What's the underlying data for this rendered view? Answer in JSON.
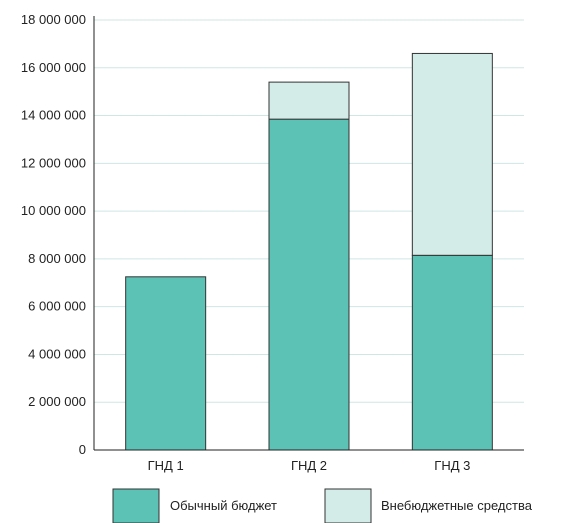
{
  "chart_data": {
    "type": "bar",
    "stacked": true,
    "categories": [
      "ГНД 1",
      "ГНД 2",
      "ГНД 3"
    ],
    "series": [
      {
        "name": "Обычный бюджет",
        "values": [
          7250000,
          13850000,
          8150000
        ],
        "color": "#5cc2b6"
      },
      {
        "name": "Внебюджетные средства",
        "values": [
          0,
          1550000,
          8450000
        ],
        "color": "#d4ece8"
      }
    ],
    "yticks": [
      0,
      2000000,
      4000000,
      6000000,
      8000000,
      10000000,
      12000000,
      14000000,
      16000000,
      18000000
    ],
    "ytick_labels": [
      "0",
      "2 000 000",
      "4 000 000",
      "6 000 000",
      "8 000 000",
      "10 000 000",
      "12 000 000",
      "14 000 000",
      "16 000 000",
      "18 000 000"
    ],
    "ylim": [
      0,
      18000000
    ],
    "grid": true,
    "legend_position": "bottom",
    "title": "",
    "xlabel": "",
    "ylabel": ""
  },
  "colors": {
    "grid": "#cfe6e3",
    "axis": "#222222",
    "bar_outline": "#333333"
  }
}
